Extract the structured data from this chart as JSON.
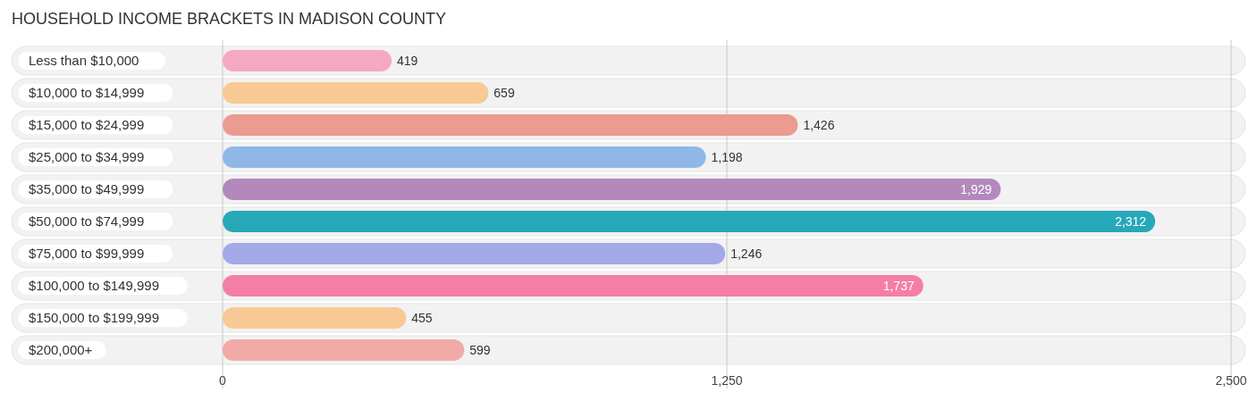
{
  "chart_data": {
    "type": "bar",
    "orientation": "horizontal",
    "title": "HOUSEHOLD INCOME BRACKETS IN MADISON COUNTY",
    "categories": [
      "Less than $10,000",
      "$10,000 to $14,999",
      "$15,000 to $24,999",
      "$25,000 to $34,999",
      "$35,000 to $49,999",
      "$50,000 to $74,999",
      "$75,000 to $99,999",
      "$100,000 to $149,999",
      "$150,000 to $199,999",
      "$200,000+"
    ],
    "values": [
      419,
      659,
      1426,
      1198,
      1929,
      2312,
      1246,
      1737,
      455,
      599
    ],
    "colors": [
      "#f5a8c3",
      "#f9c995",
      "#eb9b90",
      "#8fb8e7",
      "#b488bc",
      "#27a8b8",
      "#a3a9e7",
      "#f57ea4",
      "#f9c995",
      "#f0aba6"
    ],
    "xlim": [
      0,
      2500
    ],
    "xticks": [
      0,
      {
        "value": 1250,
        "label": "1,250"
      },
      {
        "value": 2500,
        "label": "2,500"
      }
    ],
    "value_labels": [
      "419",
      "659",
      "1,426",
      "1,198",
      "1,929",
      "2,312",
      "1,246",
      "1,737",
      "455",
      "599"
    ],
    "grid": "x"
  }
}
